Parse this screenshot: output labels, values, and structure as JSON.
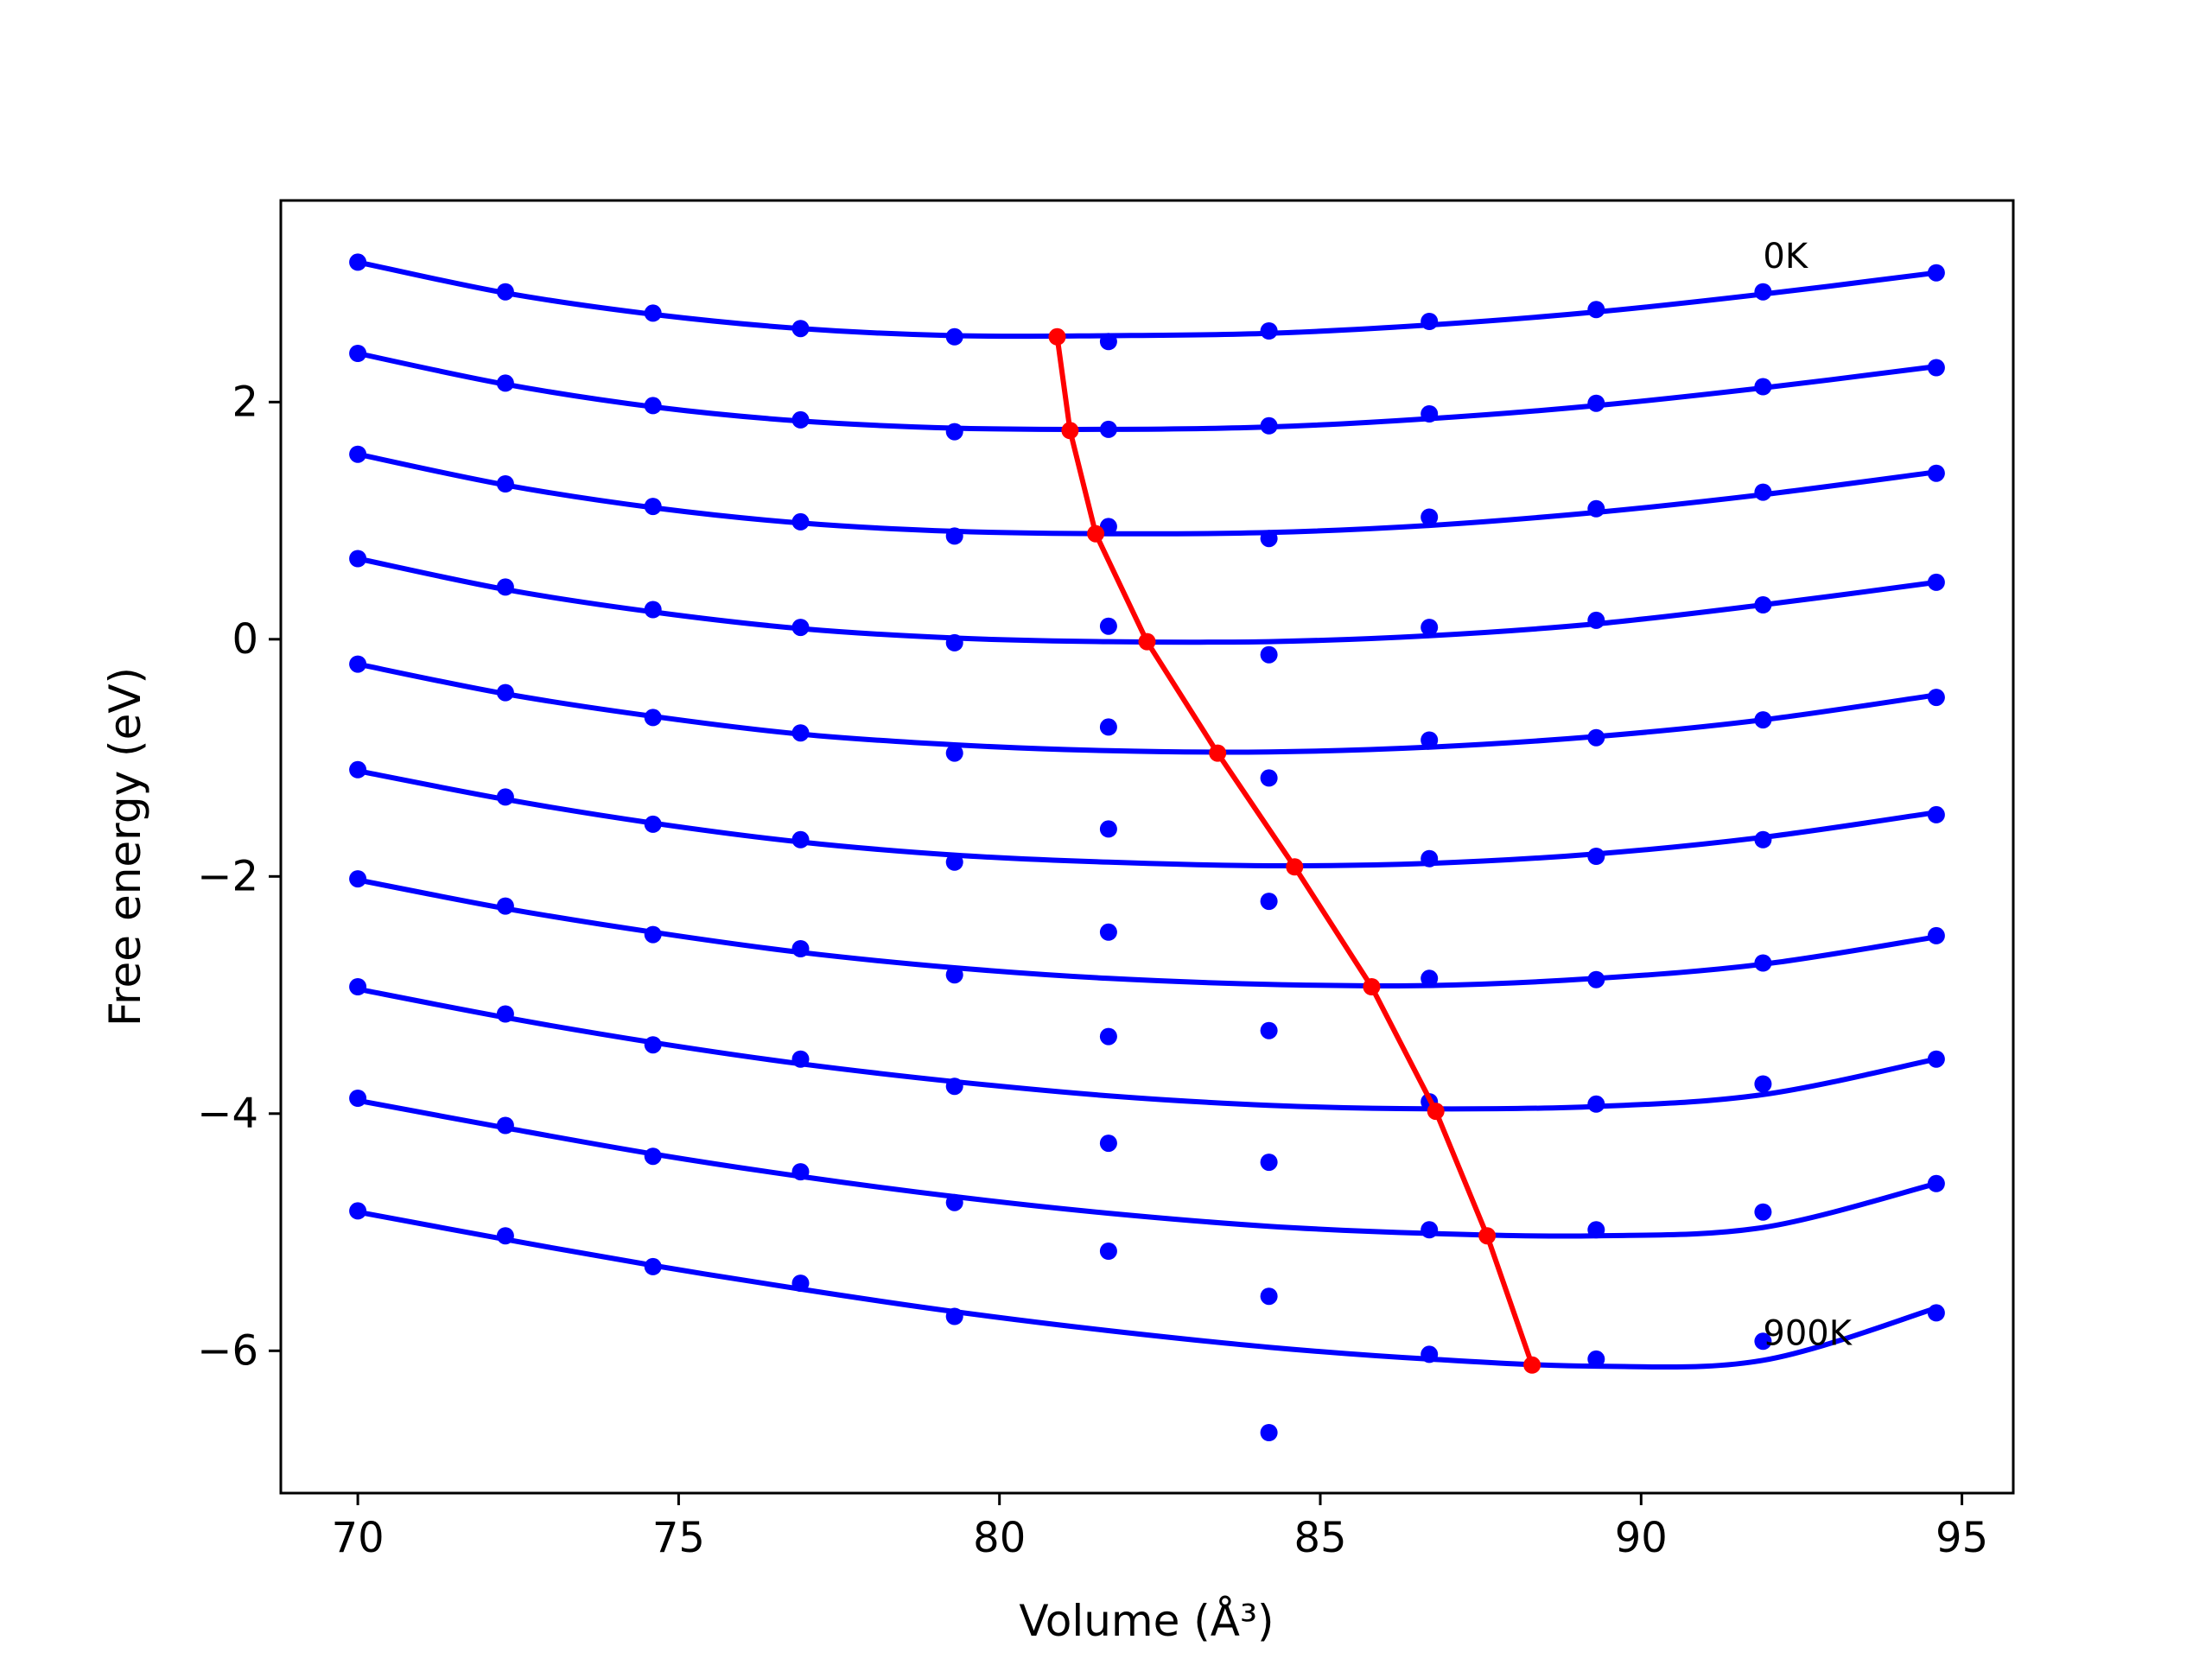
{
  "chart_data": {
    "type": "scatter",
    "title": "",
    "xlabel": "Volume",
    "xlabel_unit": "(Å³)",
    "ylabel": "Free energy (eV)",
    "xlim": [
      68.8,
      95.8
    ],
    "ylim": [
      -7.2,
      3.7
    ],
    "xticks": [
      "70",
      "75",
      "80",
      "85",
      "90",
      "95"
    ],
    "yticks": [
      "2",
      "0",
      "−2",
      "−4",
      "−6"
    ],
    "legend": "none",
    "grid": false,
    "colors": {
      "series": "#0000ff",
      "minimum": "#ff0000"
    },
    "volumes": [
      70.0,
      72.3,
      74.6,
      76.9,
      79.3,
      81.7,
      84.2,
      86.7,
      89.3,
      91.9,
      94.6
    ],
    "series": [
      {
        "name": "0K",
        "points": [
          3.18,
          2.93,
          2.75,
          2.62,
          2.55,
          2.51,
          2.6,
          2.68,
          2.78,
          2.93,
          3.09
        ],
        "fit": [
          3.18,
          2.92,
          2.74,
          2.62,
          2.56,
          2.56,
          2.58,
          2.65,
          2.76,
          2.91,
          3.09
        ]
      },
      {
        "name": "",
        "points": [
          2.41,
          2.16,
          1.97,
          1.85,
          1.75,
          1.77,
          1.8,
          1.9,
          1.99,
          2.13,
          2.29
        ],
        "fit": [
          2.41,
          2.15,
          1.96,
          1.84,
          1.78,
          1.77,
          1.79,
          1.86,
          1.97,
          2.12,
          2.3
        ]
      },
      {
        "name": "",
        "points": [
          1.56,
          1.31,
          1.12,
          0.99,
          0.87,
          0.95,
          0.85,
          1.03,
          1.1,
          1.24,
          1.4
        ],
        "fit": [
          1.56,
          1.3,
          1.11,
          0.98,
          0.91,
          0.89,
          0.9,
          0.96,
          1.07,
          1.22,
          1.41
        ]
      },
      {
        "name": "",
        "points": [
          0.68,
          0.44,
          0.25,
          0.1,
          -0.03,
          0.11,
          -0.13,
          0.1,
          0.16,
          0.29,
          0.48
        ],
        "fit": [
          0.68,
          0.42,
          0.23,
          0.09,
          0.01,
          -0.02,
          -0.02,
          0.03,
          0.13,
          0.29,
          0.48
        ]
      },
      {
        "name": "",
        "points": [
          -0.21,
          -0.45,
          -0.66,
          -0.79,
          -0.96,
          -0.74,
          -1.17,
          -0.85,
          -0.83,
          -0.68,
          -0.49
        ],
        "fit": [
          -0.21,
          -0.46,
          -0.65,
          -0.8,
          -0.89,
          -0.94,
          -0.95,
          -0.91,
          -0.82,
          -0.68,
          -0.47
        ]
      },
      {
        "name": "",
        "points": [
          -1.1,
          -1.33,
          -1.56,
          -1.69,
          -1.88,
          -1.6,
          -2.21,
          -1.85,
          -1.83,
          -1.69,
          -1.48
        ],
        "fit": [
          -1.11,
          -1.35,
          -1.55,
          -1.71,
          -1.82,
          -1.88,
          -1.91,
          -1.89,
          -1.81,
          -1.67,
          -1.46
        ]
      },
      {
        "name": "",
        "points": [
          -2.02,
          -2.25,
          -2.49,
          -2.61,
          -2.83,
          -2.47,
          -3.3,
          -2.86,
          -2.87,
          -2.73,
          -2.5
        ],
        "fit": [
          -2.03,
          -2.27,
          -2.47,
          -2.64,
          -2.77,
          -2.86,
          -2.91,
          -2.92,
          -2.86,
          -2.74,
          -2.51
        ]
      },
      {
        "name": "",
        "points": [
          -2.93,
          -3.16,
          -3.42,
          -3.54,
          -3.77,
          -3.35,
          -4.41,
          -3.9,
          -3.92,
          -3.75,
          -3.54
        ],
        "fit": [
          -2.95,
          -3.19,
          -3.4,
          -3.58,
          -3.73,
          -3.85,
          -3.93,
          -3.96,
          -3.94,
          -3.84,
          -3.54
        ]
      },
      {
        "name": "",
        "points": [
          -3.87,
          -4.1,
          -4.36,
          -4.49,
          -4.75,
          -4.25,
          -5.54,
          -4.98,
          -4.98,
          -4.83,
          -4.59
        ],
        "fit": [
          -3.89,
          -4.12,
          -4.34,
          -4.53,
          -4.7,
          -4.84,
          -4.95,
          -5.01,
          -5.03,
          -4.96,
          -4.59
        ]
      },
      {
        "name": "900K",
        "points": [
          -4.82,
          -5.03,
          -5.29,
          -5.43,
          -5.71,
          -5.16,
          -6.69,
          -6.03,
          -6.07,
          -5.92,
          -5.68
        ],
        "fit": [
          -4.83,
          -5.06,
          -5.28,
          -5.48,
          -5.67,
          -5.83,
          -5.97,
          -6.07,
          -6.13,
          -6.08,
          -5.64
        ]
      }
    ],
    "minimum_path": {
      "x": [
        80.9,
        81.1,
        81.5,
        82.3,
        83.4,
        84.6,
        85.8,
        86.8,
        87.6,
        88.3
      ],
      "y": [
        2.55,
        1.76,
        0.89,
        -0.02,
        -0.96,
        -1.92,
        -2.93,
        -3.98,
        -5.03,
        -6.12
      ]
    },
    "annotations": [
      {
        "text": "0K",
        "x": 91.9,
        "y": 3.13
      },
      {
        "text": "900K",
        "x": 91.9,
        "y": -5.95
      }
    ]
  }
}
